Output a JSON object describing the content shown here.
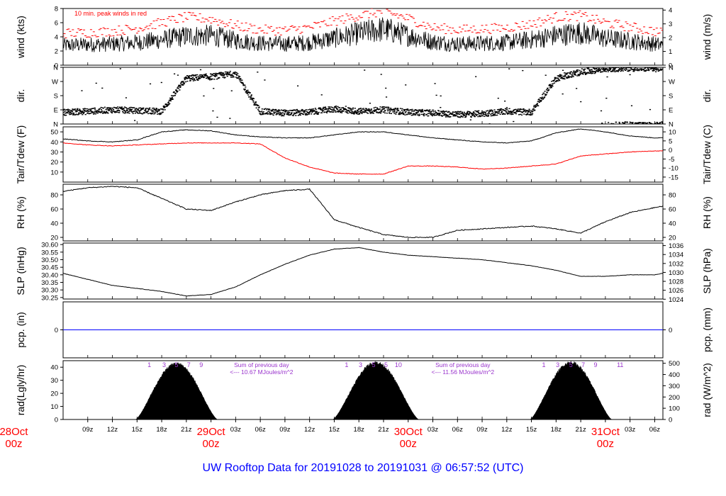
{
  "footer": {
    "title": "UW Rooftop Data for 20191028  to  20191031 @ 06:57:52  (UTC)",
    "title_color": "#0000ff"
  },
  "x_axis": {
    "tick_labels": [
      "09z",
      "12z",
      "15z",
      "18z",
      "21z",
      "",
      "03z",
      "06z",
      "09z",
      "12z",
      "15z",
      "18z",
      "21z",
      "",
      "03z",
      "06z",
      "09z",
      "12z",
      "15z",
      "18z",
      "21z",
      "",
      "03z",
      "06z"
    ],
    "day_labels": [
      {
        "date": "28Oct",
        "hour": "00z"
      },
      {
        "date": "29Oct",
        "hour": "00z"
      },
      {
        "date": "30Oct",
        "hour": "00z"
      },
      {
        "date": "31Oct",
        "hour": "00z"
      }
    ],
    "day_label_color": "#ff0000"
  },
  "colors": {
    "black": "#000000",
    "red": "#ff0000",
    "blue": "#0000ff",
    "purple": "#9933cc"
  },
  "chart_data": [
    {
      "type": "line",
      "name": "wind",
      "ylabel": "wind (kts)",
      "ylabel_right": "wind (m/s)",
      "ylim": [
        0,
        8
      ],
      "yticks": [
        "0",
        "2",
        "4",
        "6",
        "8"
      ],
      "yticks_right": [
        "0",
        "1",
        "2",
        "3",
        "4"
      ],
      "annotation": "10 min. peak winds in red",
      "series": [
        {
          "color": "#000000",
          "x": [
            6,
            9,
            12,
            15,
            18,
            21,
            24,
            27,
            30,
            33,
            36,
            39,
            42,
            45,
            48,
            51,
            54,
            57,
            60,
            63,
            66,
            69,
            72,
            75,
            78,
            79
          ],
          "y": [
            2.8,
            2.9,
            3,
            3.2,
            3.6,
            4.1,
            4.2,
            3.5,
            3.1,
            3,
            3.2,
            3.8,
            4.5,
            5.1,
            4.2,
            3.3,
            3,
            3.1,
            3.2,
            3.6,
            4.2,
            4.6,
            3.8,
            3.4,
            3,
            2.8
          ]
        },
        {
          "color": "#ff0000",
          "style": "dash",
          "x": [
            6,
            9,
            12,
            15,
            18,
            21,
            24,
            27,
            30,
            33,
            36,
            39,
            42,
            45,
            48,
            51,
            54,
            57,
            60,
            63,
            66,
            69,
            72,
            75,
            78,
            79
          ],
          "y": [
            4.5,
            4.6,
            4.8,
            5.2,
            6,
            6.8,
            6.5,
            5.6,
            5,
            4.9,
            5.3,
            6.2,
            7,
            7.6,
            6.6,
            5.3,
            5,
            5.1,
            5.3,
            5.8,
            6.8,
            7,
            6,
            5.4,
            4.8,
            4.5
          ]
        }
      ]
    },
    {
      "type": "scatter",
      "name": "direction",
      "ylabel": "dir.",
      "ylabel_right": "dir.",
      "ylim": [
        0,
        360
      ],
      "yticks": [
        "N",
        "E",
        "S",
        "W",
        "N"
      ],
      "yticks_right": [
        "N",
        "E",
        "S",
        "W",
        "N"
      ],
      "series": [
        {
          "color": "#000000",
          "x": [
            6,
            9,
            12,
            15,
            18,
            21,
            24,
            27,
            30,
            33,
            36,
            39,
            42,
            45,
            48,
            51,
            54,
            57,
            60,
            63,
            66,
            69,
            72,
            75,
            78,
            79
          ],
          "y": [
            75,
            80,
            90,
            85,
            80,
            290,
            300,
            320,
            80,
            70,
            75,
            95,
            80,
            90,
            75,
            70,
            60,
            65,
            80,
            75,
            290,
            330,
            350,
            355,
            350,
            355
          ]
        }
      ]
    },
    {
      "type": "line",
      "name": "temperature",
      "ylabel": "Tair/Tdew (F)",
      "ylabel_right": "Tair/Tdew (C)",
      "ylim": [
        0,
        55
      ],
      "yticks": [
        "10",
        "20",
        "30",
        "40",
        "50"
      ],
      "yticks_right": [
        "-15",
        "-10",
        "-5",
        "0",
        "5",
        "10"
      ],
      "series": [
        {
          "color": "#000000",
          "x": [
            6,
            9,
            12,
            15,
            18,
            21,
            24,
            27,
            30,
            33,
            36,
            39,
            42,
            45,
            48,
            51,
            54,
            57,
            60,
            63,
            66,
            69,
            72,
            75,
            78,
            79
          ],
          "y": [
            43,
            41,
            40,
            42,
            50,
            52,
            51,
            47,
            45,
            44,
            44,
            47,
            50,
            50,
            47,
            44,
            42,
            40,
            39,
            41,
            49,
            53,
            50,
            46,
            44,
            44
          ]
        },
        {
          "color": "#ff0000",
          "x": [
            6,
            9,
            12,
            15,
            18,
            21,
            24,
            27,
            30,
            33,
            36,
            39,
            42,
            45,
            48,
            51,
            54,
            57,
            60,
            63,
            66,
            69,
            72,
            75,
            78,
            79
          ],
          "y": [
            39,
            37,
            36,
            37,
            38,
            39,
            39,
            39,
            38,
            24,
            15,
            9,
            8,
            8,
            16,
            16,
            15,
            13,
            14,
            16,
            18,
            26,
            28,
            30,
            31,
            31
          ]
        }
      ]
    },
    {
      "type": "line",
      "name": "humidity",
      "ylabel": "RH (%)",
      "ylabel_right": "RH (%)",
      "ylim": [
        15,
        95
      ],
      "yticks": [
        "20",
        "40",
        "60",
        "80"
      ],
      "yticks_right": [
        "20",
        "40",
        "60",
        "80"
      ],
      "series": [
        {
          "color": "#000000",
          "x": [
            6,
            9,
            12,
            15,
            18,
            21,
            24,
            27,
            30,
            33,
            36,
            39,
            42,
            45,
            48,
            51,
            54,
            57,
            60,
            63,
            66,
            69,
            72,
            75,
            78,
            79
          ],
          "y": [
            85,
            90,
            92,
            90,
            75,
            60,
            58,
            70,
            80,
            86,
            88,
            45,
            34,
            24,
            20,
            20,
            30,
            32,
            34,
            36,
            32,
            26,
            42,
            55,
            62,
            64
          ]
        }
      ]
    },
    {
      "type": "line",
      "name": "pressure",
      "ylabel": "SLP (inHg)",
      "ylabel_right": "SLP (hPa)",
      "ylim": [
        30.24,
        30.61
      ],
      "yticks": [
        "30.25",
        "30.30",
        "30.35",
        "30.40",
        "30.45",
        "30.50",
        "30.55",
        "30.60"
      ],
      "yticks_right": [
        "1024",
        "1026",
        "1028",
        "1030",
        "1032",
        "1034",
        "1036"
      ],
      "series": [
        {
          "color": "#000000",
          "x": [
            6,
            9,
            12,
            15,
            18,
            21,
            24,
            27,
            30,
            33,
            36,
            39,
            42,
            45,
            48,
            51,
            54,
            57,
            60,
            63,
            66,
            69,
            72,
            75,
            78,
            79
          ],
          "y": [
            30.41,
            30.37,
            30.33,
            30.31,
            30.29,
            30.26,
            30.27,
            30.32,
            30.4,
            30.47,
            30.53,
            30.57,
            30.58,
            30.55,
            30.53,
            30.52,
            30.51,
            30.5,
            30.48,
            30.46,
            30.43,
            30.39,
            30.39,
            30.4,
            30.4,
            30.41
          ]
        }
      ]
    },
    {
      "type": "line",
      "name": "precipitation",
      "ylabel": "pcp. (in)",
      "ylabel_right": "pcp. (mm)",
      "ylim": [
        -1,
        1
      ],
      "yticks": [
        "0"
      ],
      "yticks_right": [
        "0"
      ],
      "series": [
        {
          "color": "#0000ff",
          "x": [
            6,
            79
          ],
          "y": [
            0,
            0
          ]
        }
      ]
    },
    {
      "type": "area",
      "name": "radiation",
      "ylabel": "rad(Lgly/hr)",
      "ylabel_right": "rad (W/m^2)",
      "ylim": [
        0,
        45
      ],
      "yticks": [
        "0",
        "10",
        "20",
        "30",
        "40"
      ],
      "yticks_right": [
        "0",
        "100",
        "200",
        "300",
        "400",
        "500"
      ],
      "days": [
        {
          "start": 14.8,
          "end": 24.8,
          "peak": 43,
          "hour_labels": [
            "1",
            "3",
            "5",
            "7",
            "9"
          ],
          "hour_label_x": [
            16.5,
            18.3,
            19.8,
            21.3,
            22.8
          ],
          "sum_text": "Sum of previous day",
          "sum_value": "<--- 10.67 MJoules/m^2"
        },
        {
          "start": 38.8,
          "end": 49.3,
          "peak": 44,
          "hour_labels": [
            "1",
            "3",
            "5",
            "5",
            "10"
          ],
          "hour_label_x": [
            40.5,
            42.2,
            43.8,
            45.3,
            46.8
          ],
          "sum_text": "Sum of previous day",
          "sum_value": "<--- 11.56 MJoules/m^2"
        },
        {
          "start": 62.8,
          "end": 72.8,
          "peak": 44,
          "hour_labels": [
            "1",
            "3",
            "5",
            "7",
            "9",
            "11"
          ],
          "hour_label_x": [
            64.5,
            66.2,
            67.8,
            69.3,
            70.8,
            73.8
          ]
        }
      ]
    }
  ]
}
